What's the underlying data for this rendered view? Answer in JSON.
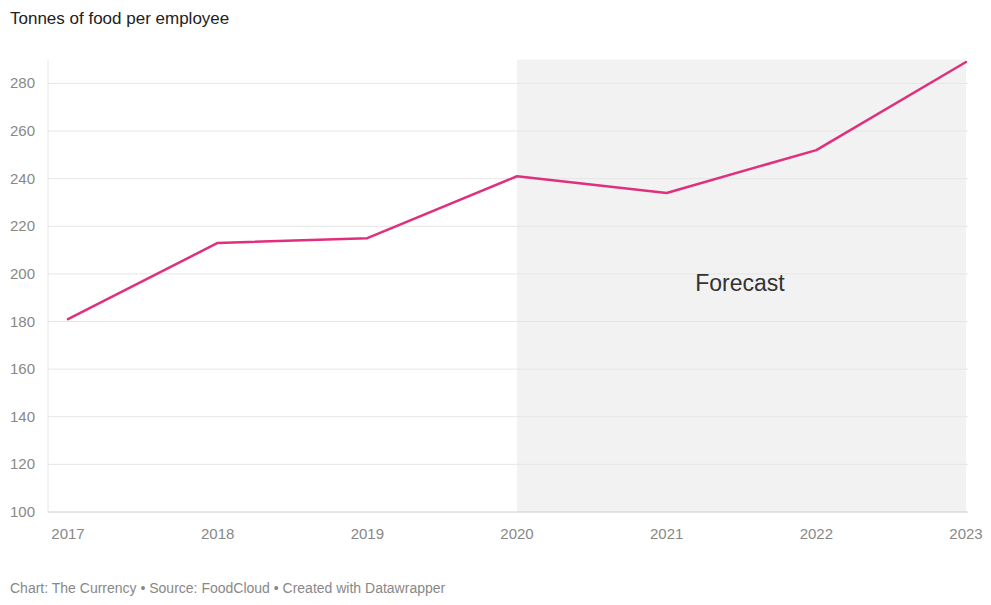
{
  "chart_data": {
    "type": "line",
    "title": "Tonnes of food per employee",
    "x": [
      2017,
      2018,
      2019,
      2020,
      2021,
      2022,
      2023
    ],
    "values": [
      181,
      213,
      215,
      241,
      234,
      252,
      289
    ],
    "color": "#df2f7d",
    "xlim": [
      2017,
      2023
    ],
    "xticks": [
      2017,
      2018,
      2019,
      2020,
      2021,
      2022,
      2023
    ],
    "ylim": [
      100,
      290
    ],
    "yticks": [
      100,
      120,
      140,
      160,
      180,
      200,
      220,
      240,
      260,
      280
    ],
    "grid": true,
    "annotations": [
      {
        "text": "Forecast",
        "x": [
          2020,
          2023
        ]
      }
    ],
    "source": "Chart: The Currency • Source: FoodCloud • Created with Datawrapper"
  }
}
